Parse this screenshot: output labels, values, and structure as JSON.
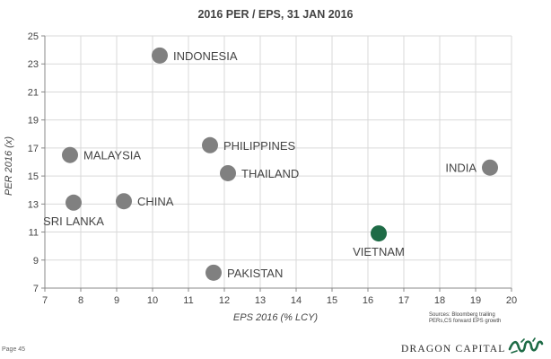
{
  "chart_data": {
    "type": "scatter",
    "title": "2016 PER / EPS, 31 JAN 2016",
    "xlabel": "EPS 2016 (% LCY)",
    "ylabel": "PER 2016 (x)",
    "xlim": [
      7,
      20
    ],
    "ylim": [
      7,
      25
    ],
    "xticks": [
      "7",
      "8",
      "9",
      "10",
      "11",
      "12",
      "13",
      "14",
      "15",
      "16",
      "17",
      "18",
      "19",
      "20"
    ],
    "yticks": [
      "7",
      "9",
      "11",
      "13",
      "15",
      "17",
      "19",
      "21",
      "23",
      "25"
    ],
    "grid": true,
    "points": [
      {
        "label": "INDONESIA",
        "x": 10.2,
        "y": 23.6,
        "color": "#808080",
        "label_pos": "right"
      },
      {
        "label": "PHILIPPINES",
        "x": 11.6,
        "y": 17.2,
        "color": "#808080",
        "label_pos": "right"
      },
      {
        "label": "MALAYSIA",
        "x": 7.7,
        "y": 16.5,
        "color": "#808080",
        "label_pos": "right"
      },
      {
        "label": "THAILAND",
        "x": 12.1,
        "y": 15.2,
        "color": "#808080",
        "label_pos": "right"
      },
      {
        "label": "INDIA",
        "x": 19.4,
        "y": 15.6,
        "color": "#808080",
        "label_pos": "left"
      },
      {
        "label": "CHINA",
        "x": 9.2,
        "y": 13.2,
        "color": "#808080",
        "label_pos": "right"
      },
      {
        "label": "SRI LANKA",
        "x": 7.8,
        "y": 13.1,
        "color": "#808080",
        "label_pos": "below"
      },
      {
        "label": "VIETNAM",
        "x": 16.3,
        "y": 10.9,
        "color": "#1e6b46",
        "label_pos": "below"
      },
      {
        "label": "PAKISTAN",
        "x": 11.7,
        "y": 8.1,
        "color": "#808080",
        "label_pos": "right"
      }
    ]
  },
  "footer": {
    "sources_line1": "Sources: Bloomberg trailing",
    "sources_line2": "PERs,CS forward EPS growth",
    "page": "Page 45",
    "brand": "DRAGON CAPITAL"
  },
  "colors": {
    "grid": "#d9d9d9",
    "axis": "#888888",
    "text": "#444444",
    "logo": "#1e6b46"
  }
}
